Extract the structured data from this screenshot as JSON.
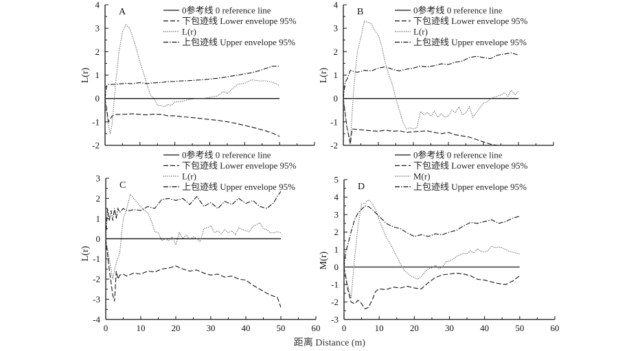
{
  "figure": {
    "xlabel": "距离 Distance (m)"
  },
  "chart_data": [
    {
      "type": "line",
      "panel": "A",
      "ylabel": "L(r)",
      "xlim": [
        0,
        60
      ],
      "ylim": [
        -2,
        4
      ],
      "xticks": [
        0,
        10,
        20,
        30,
        40,
        50,
        60
      ],
      "yticks": [
        -2,
        -1,
        0,
        1,
        2,
        3,
        4
      ],
      "legend": [
        "0参考线 0 reference line",
        "下包迹线 Lower envelope 95%",
        "L(r)",
        "上包迹线 Upper envelope 95%"
      ],
      "series": [
        {
          "name": "0参考线 0 reference line",
          "style": "solid",
          "x": [
            0,
            50
          ],
          "y": [
            0,
            0
          ]
        },
        {
          "name": "下包迹线 Lower envelope 95%",
          "style": "dashed",
          "x": [
            0,
            1,
            2,
            3,
            4,
            6,
            8,
            10,
            12,
            14,
            16,
            18,
            20,
            22,
            24,
            26,
            28,
            30,
            32,
            34,
            36,
            38,
            40,
            42,
            44,
            46,
            48,
            50
          ],
          "y": [
            0,
            -1.0,
            -0.75,
            -0.68,
            -0.68,
            -0.67,
            -0.65,
            -0.68,
            -0.7,
            -0.67,
            -0.68,
            -0.74,
            -0.74,
            -0.78,
            -0.8,
            -0.83,
            -0.86,
            -0.9,
            -0.93,
            -0.97,
            -1.02,
            -1.08,
            -1.15,
            -1.22,
            -1.3,
            -1.38,
            -1.48,
            -1.62
          ]
        },
        {
          "name": "L(r)",
          "style": "dotted",
          "x": [
            0,
            1,
            1.5,
            2,
            3,
            4,
            5,
            6,
            7,
            8,
            9,
            10,
            11,
            12,
            13,
            14,
            15,
            16,
            17,
            18,
            19,
            20,
            22,
            24,
            26,
            28,
            30,
            32,
            34,
            35,
            36,
            38,
            40,
            42,
            44,
            46,
            48,
            50
          ],
          "y": [
            0,
            -1.2,
            -1.5,
            -1.1,
            0.6,
            2.0,
            2.85,
            3.15,
            3.0,
            2.6,
            2.1,
            1.55,
            1.1,
            0.6,
            0.15,
            0.0,
            -0.3,
            -0.3,
            -0.35,
            -0.25,
            -0.3,
            -0.15,
            -0.12,
            -0.05,
            0.0,
            0.0,
            0.05,
            0.1,
            0.3,
            0.2,
            0.35,
            0.6,
            0.65,
            0.8,
            0.75,
            0.75,
            0.7,
            0.55
          ]
        },
        {
          "name": "上包迹线 Upper envelope 95%",
          "style": "dashdot",
          "x": [
            0,
            0.5,
            1,
            2,
            4,
            6,
            8,
            10,
            12,
            14,
            16,
            18,
            20,
            22,
            24,
            26,
            28,
            30,
            32,
            34,
            36,
            38,
            40,
            42,
            44,
            46,
            48,
            50
          ],
          "y": [
            0,
            0.55,
            0.6,
            0.6,
            0.62,
            0.65,
            0.63,
            0.68,
            0.63,
            0.67,
            0.68,
            0.72,
            0.73,
            0.75,
            0.76,
            0.78,
            0.8,
            0.83,
            0.86,
            0.9,
            0.95,
            1.0,
            1.05,
            1.1,
            1.18,
            1.28,
            1.38,
            1.38
          ]
        }
      ]
    },
    {
      "type": "line",
      "panel": "B",
      "ylabel": "L(r)",
      "xlim": [
        0,
        60
      ],
      "ylim": [
        -2,
        4
      ],
      "xticks": [
        0,
        10,
        20,
        30,
        40,
        50,
        60
      ],
      "yticks": [
        -2,
        -1,
        0,
        1,
        2,
        3,
        4
      ],
      "legend": [
        "0参考线 0 reference line",
        "下包迹线 Lower envelope 95%",
        "L(r)",
        "上包迹线 Upper envelope 95%"
      ],
      "series": [
        {
          "name": "0参考线 0 reference line",
          "style": "solid",
          "x": [
            0,
            50
          ],
          "y": [
            0,
            0
          ]
        },
        {
          "name": "下包迹线 Lower envelope 95%",
          "style": "dashed",
          "x": [
            0,
            1,
            2,
            2.5,
            4,
            6,
            8,
            10,
            12,
            14,
            16,
            18,
            20,
            22,
            24,
            26,
            28,
            30,
            32,
            34,
            36,
            38,
            40,
            42,
            44,
            45
          ],
          "y": [
            0,
            -1.2,
            -1.95,
            -1.3,
            -1.32,
            -1.35,
            -1.38,
            -1.4,
            -1.35,
            -1.4,
            -1.38,
            -1.45,
            -1.42,
            -1.4,
            -1.38,
            -1.45,
            -1.5,
            -1.45,
            -1.55,
            -1.6,
            -1.65,
            -1.75,
            -1.85,
            -1.95,
            -2.0,
            -2.0
          ]
        },
        {
          "name": "L(r)",
          "style": "dotted",
          "x": [
            0,
            1,
            2,
            3,
            4,
            5,
            6,
            7,
            8,
            9,
            10,
            11,
            12,
            13,
            14,
            15,
            16,
            17,
            18,
            19,
            20,
            21,
            22,
            23,
            24,
            25,
            26,
            27,
            28,
            29,
            30,
            31,
            32,
            33,
            34,
            35,
            36,
            37,
            38,
            39,
            40,
            41,
            42,
            43,
            44,
            45,
            46,
            47,
            48,
            49,
            50
          ],
          "y": [
            0,
            -1.2,
            -1.8,
            0.5,
            2.0,
            2.6,
            3.3,
            3.25,
            3.2,
            2.9,
            2.7,
            2.2,
            1.5,
            1.0,
            0.6,
            0.0,
            -0.5,
            -1.0,
            -1.3,
            -1.25,
            -1.3,
            -1.25,
            -0.55,
            -0.7,
            -0.6,
            -0.75,
            -0.55,
            -0.8,
            -0.65,
            -0.8,
            -0.75,
            -0.5,
            -0.6,
            -0.35,
            -0.7,
            -0.6,
            -0.35,
            -0.8,
            -0.6,
            -0.4,
            -0.2,
            -0.15,
            0.0,
            0.05,
            0.1,
            0.15,
            0.25,
            0.1,
            0.35,
            0.15,
            0.3
          ]
        },
        {
          "name": "上包迹线 Upper envelope 95%",
          "style": "dashdot",
          "x": [
            0,
            0.5,
            1,
            2,
            3,
            4,
            6,
            8,
            10,
            12,
            14,
            16,
            18,
            20,
            22,
            24,
            26,
            28,
            30,
            32,
            34,
            36,
            38,
            40,
            42,
            44,
            46,
            48,
            50
          ],
          "y": [
            0,
            0.7,
            0.8,
            1.2,
            1.15,
            1.12,
            1.2,
            1.18,
            1.3,
            1.35,
            1.25,
            1.18,
            1.25,
            1.3,
            1.38,
            1.35,
            1.4,
            1.48,
            1.45,
            1.55,
            1.6,
            1.75,
            1.8,
            1.75,
            1.7,
            1.85,
            1.9,
            1.95,
            1.85
          ]
        }
      ]
    },
    {
      "type": "line",
      "panel": "C",
      "ylabel": "L(r)",
      "xlim": [
        0,
        60
      ],
      "ylim": [
        -4,
        3
      ],
      "xticks": [
        0,
        10,
        20,
        30,
        40,
        50,
        60
      ],
      "yticks": [
        -4,
        -3,
        -2,
        -1,
        0,
        1,
        2,
        3
      ],
      "legend": [
        "0参考线 0 reference line",
        "下包迹线 Lower envelope 95%",
        "L(r)",
        "上包迹线 Upper envelope 95%"
      ],
      "series": [
        {
          "name": "0参考线 0 reference line",
          "style": "solid",
          "x": [
            0,
            50
          ],
          "y": [
            0,
            0
          ]
        },
        {
          "name": "下包迹线 Lower envelope 95%",
          "style": "dashed",
          "x": [
            0,
            1,
            2,
            2.5,
            3,
            3.5,
            4,
            5,
            6,
            8,
            10,
            12,
            14,
            16,
            18,
            20,
            22,
            24,
            26,
            28,
            30,
            32,
            34,
            36,
            38,
            40,
            42,
            44,
            46,
            48,
            49,
            50
          ],
          "y": [
            0,
            -1.5,
            -2.8,
            -3.1,
            -1.6,
            -2.0,
            -1.8,
            -1.75,
            -1.85,
            -1.7,
            -1.75,
            -1.6,
            -1.65,
            -1.5,
            -1.45,
            -1.35,
            -1.5,
            -1.6,
            -1.55,
            -1.7,
            -1.8,
            -1.75,
            -1.9,
            -1.85,
            -2.0,
            -2.05,
            -2.3,
            -2.5,
            -2.7,
            -2.85,
            -2.9,
            -3.4
          ]
        },
        {
          "name": "L(r)",
          "style": "dotted",
          "x": [
            0,
            1,
            2,
            3,
            4,
            5,
            6,
            7,
            8,
            9,
            10,
            11,
            12,
            13,
            14,
            15,
            16,
            17,
            18,
            19,
            20,
            21,
            22,
            23,
            24,
            25,
            26,
            27,
            28,
            29,
            30,
            31,
            32,
            33,
            34,
            35,
            36,
            37,
            38,
            39,
            40,
            41,
            42,
            43,
            44,
            45,
            46,
            47,
            48,
            49,
            50
          ],
          "y": [
            0,
            -1.0,
            -2.0,
            -1.2,
            -0.7,
            1.0,
            1.5,
            2.2,
            2.0,
            1.8,
            1.6,
            1.4,
            1.3,
            0.9,
            0.35,
            0.3,
            -0.1,
            0.0,
            -0.1,
            0.1,
            -0.3,
            0.3,
            0.0,
            0.2,
            -0.05,
            0.1,
            0.0,
            -0.15,
            0.5,
            0.55,
            0.65,
            0.3,
            0.4,
            0.25,
            0.45,
            0.3,
            0.4,
            0.2,
            0.55,
            0.45,
            0.4,
            0.35,
            0.6,
            0.7,
            0.8,
            0.5,
            0.45,
            0.3,
            0.3,
            0.35,
            0.3
          ]
        },
        {
          "name": "上包迹线 Upper envelope 95%",
          "style": "dashdot",
          "x": [
            0,
            0.5,
            1,
            1.5,
            2,
            2.5,
            3,
            3.5,
            4,
            5,
            6,
            7,
            8,
            10,
            12,
            14,
            16,
            18,
            20,
            22,
            24,
            26,
            28,
            30,
            32,
            34,
            36,
            38,
            40,
            42,
            44,
            46,
            48,
            49,
            50
          ],
          "y": [
            0,
            1.5,
            0.9,
            1.4,
            0.9,
            1.5,
            1.0,
            1.5,
            1.3,
            1.5,
            1.4,
            1.4,
            1.45,
            1.4,
            1.6,
            1.5,
            1.95,
            2.0,
            1.9,
            2.0,
            1.7,
            2.1,
            1.6,
            1.8,
            1.5,
            1.85,
            1.7,
            2.0,
            1.75,
            1.9,
            1.6,
            1.5,
            1.8,
            2.1,
            2.35
          ]
        }
      ]
    },
    {
      "type": "line",
      "panel": "D",
      "ylabel": "M(r)",
      "xlim": [
        0,
        60
      ],
      "ylim": [
        -3,
        5
      ],
      "xticks": [
        0,
        10,
        20,
        30,
        40,
        50,
        60
      ],
      "yticks": [
        -3,
        -2,
        -1,
        0,
        1,
        2,
        3,
        4,
        5
      ],
      "legend": [
        "0参考线 0 reference line",
        "下包迹线 Lower envelope 95%",
        "M(r)",
        "上包迹线 Upper envelope 95%"
      ],
      "series": [
        {
          "name": "0参考线 0 reference line",
          "style": "solid",
          "x": [
            0,
            50
          ],
          "y": [
            0,
            0
          ]
        },
        {
          "name": "下包迹线 Lower envelope 95%",
          "style": "dashed",
          "x": [
            0,
            1,
            2,
            3,
            4,
            5,
            6,
            7,
            8,
            9,
            10,
            12,
            14,
            16,
            18,
            20,
            22,
            24,
            26,
            28,
            30,
            32,
            34,
            36,
            38,
            40,
            42,
            44,
            46,
            48,
            50
          ],
          "y": [
            0,
            -1.2,
            -2.0,
            -2.1,
            -1.9,
            -2.1,
            -2.4,
            -2.3,
            -1.9,
            -1.4,
            -1.25,
            -1.3,
            -1.15,
            -1.2,
            -1.1,
            -1.2,
            -1.25,
            -0.9,
            -0.6,
            -0.45,
            -0.4,
            -0.35,
            -0.4,
            -0.5,
            -0.7,
            -0.75,
            -0.85,
            -0.95,
            -1.0,
            -0.8,
            -0.5
          ]
        },
        {
          "name": "M(r)",
          "style": "dotted",
          "x": [
            0,
            1,
            2,
            3,
            4,
            5,
            6,
            7,
            8,
            9,
            10,
            11,
            12,
            13,
            14,
            15,
            16,
            17,
            18,
            19,
            20,
            21,
            22,
            23,
            24,
            25,
            26,
            27,
            28,
            29,
            30,
            31,
            32,
            33,
            34,
            35,
            36,
            37,
            38,
            39,
            40,
            41,
            42,
            43,
            44,
            45,
            46,
            47,
            48,
            49,
            50
          ],
          "y": [
            0,
            -1.0,
            -1.8,
            0.5,
            2.4,
            3.6,
            3.65,
            3.85,
            3.65,
            3.3,
            2.7,
            2.2,
            1.7,
            1.4,
            1.0,
            0.6,
            0.2,
            -0.15,
            -0.35,
            -0.5,
            -0.6,
            -0.7,
            -0.55,
            -0.3,
            -0.1,
            -0.05,
            0.1,
            -0.1,
            0.0,
            0.3,
            0.35,
            0.45,
            0.6,
            0.7,
            0.8,
            0.75,
            0.95,
            0.8,
            1.05,
            0.9,
            0.85,
            0.95,
            1.2,
            1.1,
            1.15,
            1.1,
            1.0,
            0.9,
            0.85,
            0.8,
            0.75
          ]
        },
        {
          "name": "上包迹线 Upper envelope 95%",
          "style": "dashdot",
          "x": [
            0,
            0.5,
            1,
            2,
            3,
            4,
            5,
            6,
            7,
            8,
            9,
            10,
            12,
            14,
            16,
            18,
            20,
            22,
            24,
            26,
            28,
            30,
            32,
            34,
            36,
            38,
            40,
            42,
            44,
            46,
            48,
            50
          ],
          "y": [
            0,
            0.9,
            1.2,
            2.0,
            2.7,
            3.1,
            3.3,
            3.5,
            3.45,
            3.3,
            3.1,
            2.9,
            2.5,
            2.3,
            2.2,
            1.95,
            1.75,
            1.85,
            1.75,
            1.9,
            1.85,
            2.0,
            2.1,
            2.35,
            2.55,
            2.5,
            2.6,
            2.7,
            2.5,
            2.6,
            2.8,
            2.9
          ]
        }
      ]
    }
  ]
}
